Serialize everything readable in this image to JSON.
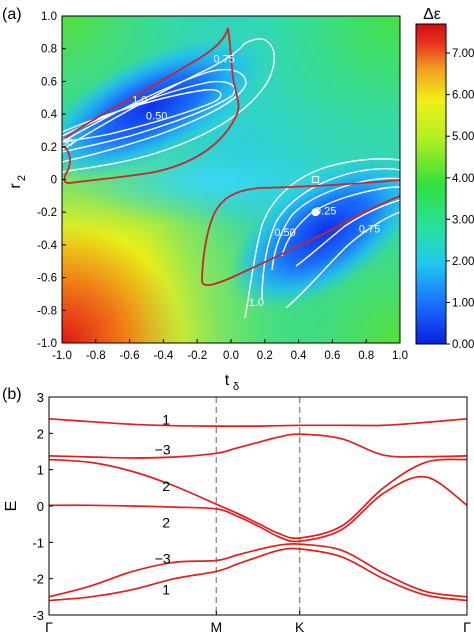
{
  "chart_data": [
    {
      "type": "heatmap",
      "panel_label": "(a)",
      "xlabel": "t",
      "xlabel_sub": "δ",
      "ylabel": "r",
      "ylabel_sub": "2",
      "xlim": [
        -1.0,
        1.0
      ],
      "ylim": [
        -1.0,
        1.0
      ],
      "x_ticks": [
        "-1.0",
        "-0.8",
        "-0.6",
        "-0.4",
        "-0.2",
        "0.0",
        "0.2",
        "0.4",
        "0.6",
        "0.8",
        "1.0"
      ],
      "y_ticks": [
        "-1.0",
        "-0.8",
        "-0.6",
        "-0.4",
        "-0.2",
        "0",
        "0.2",
        "0.4",
        "0.6",
        "0.8",
        "1.0"
      ],
      "colorbar": {
        "title": "Δε",
        "range": [
          0,
          7.7
        ],
        "ticks": [
          "0.00",
          "1.00",
          "2.00",
          "3.00",
          "4.00",
          "5.00",
          "6.00",
          "7.00"
        ],
        "colors": [
          "#0b1fe0",
          "#1a6cff",
          "#20c8f0",
          "#28e0a0",
          "#33e03a",
          "#b0f020",
          "#f0f018",
          "#f0a020",
          "#e83020",
          "#d01010"
        ]
      },
      "contour_labels": [
        {
          "text": "0.75",
          "x": -0.04,
          "y": 0.74
        },
        {
          "text": "1.0",
          "x": -0.54,
          "y": 0.49
        },
        {
          "text": "0.50",
          "x": -0.44,
          "y": 0.39
        },
        {
          "text": "50",
          "x": -0.97,
          "y": 0.23
        },
        {
          "text": "0.25",
          "x": 0.56,
          "y": -0.19
        },
        {
          "text": "0.50",
          "x": 0.32,
          "y": -0.32
        },
        {
          "text": "0.75",
          "x": 0.82,
          "y": -0.3
        },
        {
          "text": "1.0",
          "x": 0.15,
          "y": -0.75
        }
      ],
      "markers": [
        {
          "shape": "circle",
          "x": 0.5,
          "y": -0.2
        },
        {
          "shape": "square",
          "x": 0.5,
          "y": 0.0
        }
      ]
    },
    {
      "type": "line",
      "panel_label": "(b)",
      "ylabel": "E",
      "ylim": [
        -3,
        3
      ],
      "y_ticks": [
        "-3",
        "-2",
        "-1",
        "0",
        "1",
        "2",
        "3"
      ],
      "x_positions": [
        0,
        1,
        1.4989,
        2.4989
      ],
      "x_ticks": [
        "Γ",
        "M",
        "K",
        "Γ"
      ],
      "vlines_at": [
        1,
        1.4989
      ],
      "color": "#e02020",
      "band_labels": [
        {
          "text": "1",
          "x": 0.7,
          "y": 2.38
        },
        {
          "text": "−3",
          "x": 0.68,
          "y": 1.55
        },
        {
          "text": "2",
          "x": 0.7,
          "y": 0.55
        },
        {
          "text": "2",
          "x": 0.7,
          "y": -0.45
        },
        {
          "text": "−3",
          "x": 0.68,
          "y": -1.45
        },
        {
          "text": "1",
          "x": 0.7,
          "y": -2.3
        }
      ],
      "bands": [
        {
          "x": [
            0,
            0.25,
            0.5,
            0.75,
            1.0,
            1.125,
            1.25,
            1.375,
            1.4989,
            1.75,
            2.0,
            2.25,
            2.4989
          ],
          "y": [
            2.4,
            2.32,
            2.25,
            2.21,
            2.2,
            2.2,
            2.2,
            2.21,
            2.22,
            2.22,
            2.22,
            2.3,
            2.4
          ]
        },
        {
          "x": [
            0,
            0.25,
            0.5,
            0.75,
            1.0,
            1.125,
            1.25,
            1.375,
            1.4989,
            1.75,
            2.0,
            2.25,
            2.4989
          ],
          "y": [
            1.38,
            1.35,
            1.32,
            1.35,
            1.45,
            1.6,
            1.75,
            1.9,
            1.98,
            1.85,
            1.4,
            1.36,
            1.38
          ]
        },
        {
          "x": [
            0,
            0.25,
            0.5,
            0.75,
            1.0,
            1.125,
            1.25,
            1.375,
            1.4989,
            1.75,
            2.0,
            2.25,
            2.4989
          ],
          "y": [
            1.28,
            1.2,
            0.95,
            0.55,
            0.05,
            -0.2,
            -0.48,
            -0.76,
            -0.88,
            -0.55,
            0.5,
            1.2,
            1.28
          ]
        },
        {
          "x": [
            0,
            0.25,
            0.5,
            0.75,
            1.0,
            1.125,
            1.25,
            1.375,
            1.4989,
            1.75,
            2.0,
            2.25,
            2.4989
          ],
          "y": [
            0.02,
            0.02,
            0.0,
            -0.03,
            -0.08,
            -0.28,
            -0.55,
            -0.85,
            -0.97,
            -0.65,
            0.35,
            0.8,
            0.02
          ]
        },
        {
          "x": [
            0,
            0.25,
            0.5,
            0.75,
            1.0,
            1.125,
            1.25,
            1.375,
            1.4989,
            1.75,
            2.0,
            2.25,
            2.4989
          ],
          "y": [
            -2.5,
            -2.2,
            -1.8,
            -1.55,
            -1.5,
            -1.35,
            -1.2,
            -1.08,
            -1.05,
            -1.22,
            -1.85,
            -2.35,
            -2.5
          ]
        },
        {
          "x": [
            0,
            0.25,
            0.5,
            0.75,
            1.0,
            1.125,
            1.25,
            1.375,
            1.4989,
            1.75,
            2.0,
            2.25,
            2.4989
          ],
          "y": [
            -2.6,
            -2.5,
            -2.3,
            -2.0,
            -1.8,
            -1.6,
            -1.4,
            -1.22,
            -1.18,
            -1.4,
            -2.0,
            -2.45,
            -2.6
          ]
        }
      ]
    }
  ]
}
